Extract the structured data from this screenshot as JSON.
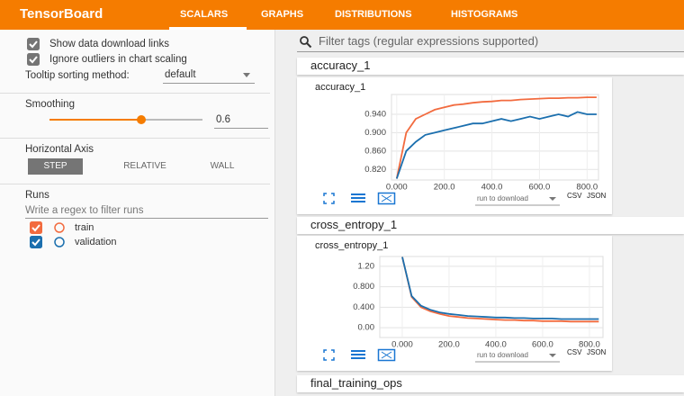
{
  "header": {
    "title": "TensorBoard",
    "tabs": [
      "SCALARS",
      "GRAPHS",
      "DISTRIBUTIONS",
      "HISTOGRAMS"
    ],
    "active_tab": 0
  },
  "sidebar": {
    "options": [
      {
        "label": "Show data download links",
        "checked": true
      },
      {
        "label": "Ignore outliers in chart scaling",
        "checked": true
      }
    ],
    "tooltip": {
      "label": "Tooltip sorting method:",
      "value": "default"
    },
    "smoothing": {
      "label": "Smoothing",
      "value": 0.6
    },
    "horizontal_axis": {
      "label": "Horizontal Axis",
      "options": [
        "STEP",
        "RELATIVE",
        "WALL"
      ],
      "selected": 0
    },
    "runs": {
      "label": "Runs",
      "filter_placeholder": "Write a regex to filter runs",
      "items": [
        {
          "name": "train",
          "color": "#f26b3f",
          "checked": true
        },
        {
          "name": "validation",
          "color": "#1b6fae",
          "checked": true
        }
      ]
    }
  },
  "main": {
    "search_placeholder": "Filter tags (regular expressions supported)",
    "download": {
      "select": "run to download",
      "links": [
        "CSV",
        "JSON"
      ]
    },
    "cards": [
      {
        "tag": "accuracy_1",
        "chart": {
          "type": "line",
          "title": "accuracy_1",
          "x": [
            0,
            40,
            80,
            120,
            160,
            200,
            240,
            280,
            320,
            360,
            400,
            440,
            480,
            520,
            560,
            600,
            640,
            680,
            720,
            760,
            800,
            840
          ],
          "xlim": [
            -22,
            848
          ],
          "xticks": [
            {
              "value": 0,
              "label": "0.000"
            },
            {
              "value": 200,
              "label": "200.0"
            },
            {
              "value": 400,
              "label": "400.0"
            },
            {
              "value": 600,
              "label": "600.0"
            },
            {
              "value": 800,
              "label": "800.0"
            }
          ],
          "ylim": [
            0.797,
            0.983
          ],
          "yticks": [
            {
              "value": 0.94,
              "label": "0.940"
            },
            {
              "value": 0.9,
              "label": "0.900"
            },
            {
              "value": 0.86,
              "label": "0.860"
            },
            {
              "value": 0.82,
              "label": "0.820"
            }
          ],
          "grid": true,
          "series": [
            {
              "color": "#f26b3f",
              "values": [
                0.8,
                0.9,
                0.93,
                0.94,
                0.95,
                0.955,
                0.96,
                0.962,
                0.965,
                0.967,
                0.968,
                0.97,
                0.97,
                0.972,
                0.973,
                0.974,
                0.975,
                0.975,
                0.976,
                0.976,
                0.977,
                0.977
              ]
            },
            {
              "color": "#1b6fae",
              "values": [
                0.8,
                0.86,
                0.88,
                0.895,
                0.9,
                0.905,
                0.91,
                0.915,
                0.92,
                0.92,
                0.925,
                0.93,
                0.925,
                0.93,
                0.935,
                0.93,
                0.935,
                0.94,
                0.935,
                0.945,
                0.94,
                0.94
              ]
            }
          ]
        }
      },
      {
        "tag": "cross_entropy_1",
        "chart": {
          "type": "line",
          "title": "cross_entropy_1",
          "x": [
            0,
            40,
            80,
            120,
            160,
            200,
            240,
            280,
            320,
            360,
            400,
            440,
            480,
            520,
            560,
            600,
            640,
            680,
            720,
            760,
            800,
            840
          ],
          "xlim": [
            -96,
            858
          ],
          "xticks": [
            {
              "value": 0,
              "label": "0.000"
            },
            {
              "value": 200,
              "label": "200.0"
            },
            {
              "value": 400,
              "label": "400.0"
            },
            {
              "value": 600,
              "label": "600.0"
            },
            {
              "value": 800,
              "label": "800.0"
            }
          ],
          "ylim": [
            -0.19,
            1.39
          ],
          "yticks": [
            {
              "value": 1.2,
              "label": "1.20"
            },
            {
              "value": 0.8,
              "label": "0.800"
            },
            {
              "value": 0.4,
              "label": "0.400"
            },
            {
              "value": 0,
              "label": "0.00"
            }
          ],
          "grid": true,
          "series": [
            {
              "color": "#f26b3f",
              "values": [
                1.38,
                0.6,
                0.4,
                0.32,
                0.27,
                0.23,
                0.21,
                0.19,
                0.18,
                0.17,
                0.16,
                0.15,
                0.15,
                0.14,
                0.14,
                0.13,
                0.13,
                0.13,
                0.12,
                0.12,
                0.12,
                0.12
              ]
            },
            {
              "color": "#1b6fae",
              "values": [
                1.38,
                0.62,
                0.43,
                0.35,
                0.3,
                0.27,
                0.25,
                0.23,
                0.22,
                0.21,
                0.2,
                0.2,
                0.19,
                0.19,
                0.18,
                0.18,
                0.18,
                0.17,
                0.17,
                0.17,
                0.17,
                0.17
              ]
            }
          ]
        }
      },
      {
        "tag": "final_training_ops"
      }
    ]
  }
}
